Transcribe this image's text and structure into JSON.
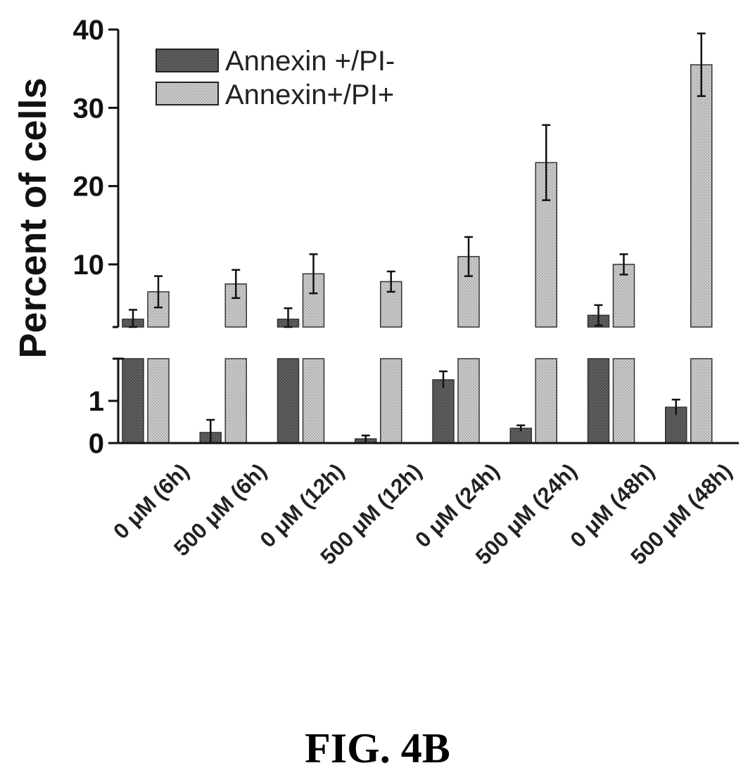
{
  "figure": {
    "caption": "FIG. 4B"
  },
  "chart_data": {
    "type": "bar",
    "ylabel": "Percent of cells",
    "axis_break": true,
    "lower_panel": {
      "ylim": [
        0,
        2
      ],
      "ticks": [
        "0",
        "1"
      ]
    },
    "upper_panel": {
      "ylim": [
        2,
        40
      ],
      "ticks": [
        "10",
        "20",
        "30",
        "40"
      ]
    },
    "categories": [
      "0 μM (6h)",
      "500 μM (6h)",
      "0 μM (12h)",
      "500 μM (12h)",
      "0 μM (24h)",
      "500 μM (24h)",
      "0 μM (48h)",
      "500 μM (48h)"
    ],
    "series": [
      {
        "name": "Annexin +/PI-",
        "color": "#555555",
        "values": [
          3.0,
          0.25,
          3.0,
          0.1,
          1.5,
          0.35,
          3.5,
          0.85
        ],
        "errors": [
          1.2,
          0.3,
          1.4,
          0.08,
          0.2,
          0.07,
          1.3,
          0.18
        ]
      },
      {
        "name": "Annexin+/PI+",
        "color": "#c4c4c4",
        "values": [
          6.5,
          7.5,
          8.8,
          7.8,
          11.0,
          23.0,
          10.0,
          35.5
        ],
        "errors": [
          2.0,
          1.8,
          2.5,
          1.3,
          2.5,
          4.8,
          1.3,
          4.0
        ]
      }
    ],
    "legend": "top-left",
    "grid": false
  }
}
